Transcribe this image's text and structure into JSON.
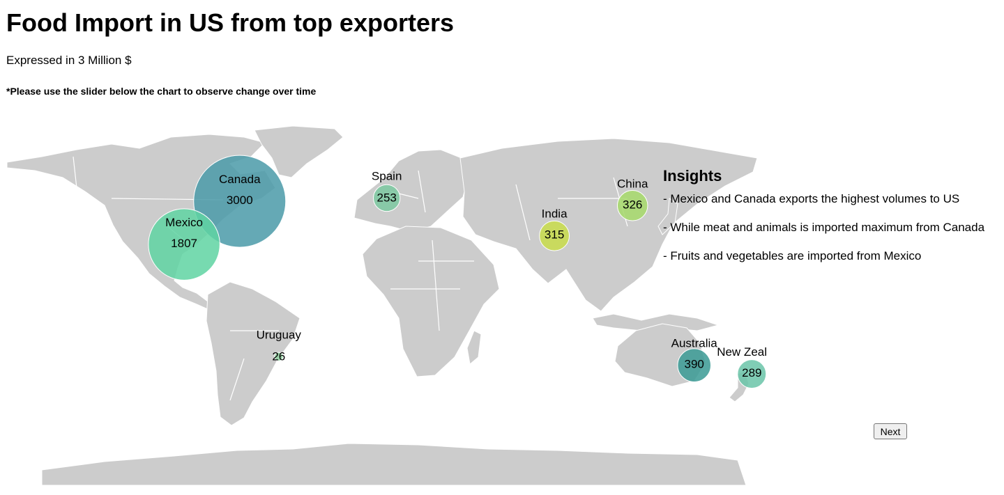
{
  "header": {
    "title": "Food Import in US from top exporters",
    "subtitle": "Expressed in 3 Million $",
    "note": "*Please use the slider below the chart to observe change over time"
  },
  "insights": {
    "heading": "Insights",
    "items": [
      "- Mexico and Canada exports the highest volumes to US",
      "- While meat and animals is imported maximum from Canada",
      "- Fruits and vegetables are imported from Mexico"
    ]
  },
  "controls": {
    "next_label": "Next"
  },
  "map": {
    "land_color": "#cccccc",
    "border_color": "#ffffff",
    "countries": [
      {
        "name": "Canada",
        "value": 3000,
        "lon": -75,
        "lat": 39,
        "color": "#4a9aa8"
      },
      {
        "name": "Mexico",
        "value": 1807,
        "lon": -102,
        "lat": 19,
        "color": "#5fd3a2"
      },
      {
        "name": "Spain",
        "value": 253,
        "lon": -3.5,
        "lat": 40.5,
        "color": "#7bc8a0"
      },
      {
        "name": "India",
        "value": 315,
        "lon": 78,
        "lat": 23,
        "color": "#c8dc4a"
      },
      {
        "name": "China",
        "value": 326,
        "lon": 116,
        "lat": 37,
        "color": "#a6d96a"
      },
      {
        "name": "Uruguay",
        "value": 26,
        "lon": -56,
        "lat": -33,
        "color": "#8fd0a0"
      },
      {
        "name": "Australia",
        "value": 390,
        "lon": 146,
        "lat": -37,
        "color": "#3a9a94"
      },
      {
        "name": "New Zealand",
        "value": 289,
        "lon": 174,
        "lat": -41,
        "color": "#6ac4a8"
      }
    ]
  }
}
